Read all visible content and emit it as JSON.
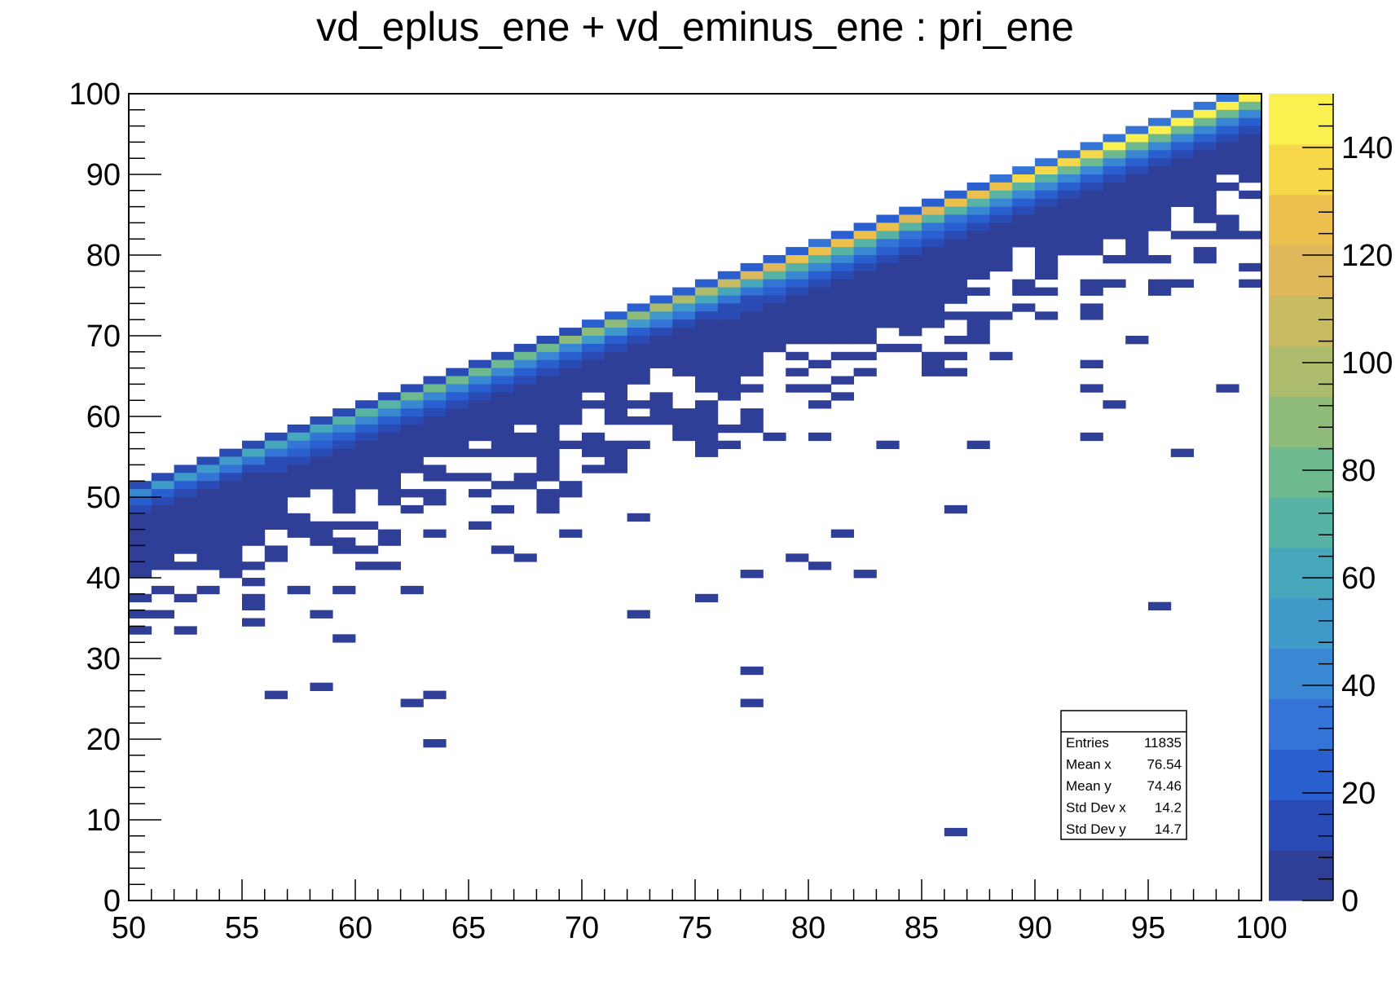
{
  "chart_data": {
    "type": "heatmap",
    "title": "vd_eplus_ene + vd_eminus_ene : pri_ene",
    "xlabel": "",
    "ylabel": "",
    "xlim": [
      50,
      100
    ],
    "ylim": [
      0,
      100
    ],
    "zlim": [
      0,
      150
    ],
    "x_ticks": [
      "50",
      "55",
      "60",
      "65",
      "70",
      "75",
      "80",
      "85",
      "90",
      "95",
      "100"
    ],
    "y_ticks": [
      "0",
      "10",
      "20",
      "30",
      "40",
      "50",
      "60",
      "70",
      "80",
      "90",
      "100"
    ],
    "z_ticks": [
      "0",
      "20",
      "40",
      "60",
      "80",
      "100",
      "120",
      "140"
    ],
    "bins": {
      "x": 50,
      "y": 100
    },
    "grid": false,
    "palette": [
      "#2f3f97",
      "#2b4bb4",
      "#2a5fd0",
      "#3374d6",
      "#3a88d3",
      "#3f9ac9",
      "#47a8bb",
      "#58b3a5",
      "#6fb990",
      "#8ebb7a",
      "#acbc6c",
      "#c8bb62",
      "#deb85a",
      "#ecc04e",
      "#f6d84a",
      "#faf050"
    ],
    "diagonal_band": [
      {
        "x": 50,
        "y": 51,
        "peak": 45
      },
      {
        "x": 55,
        "y": 56,
        "peak": 55
      },
      {
        "x": 60,
        "y": 61,
        "peak": 70
      },
      {
        "x": 65,
        "y": 66,
        "peak": 80
      },
      {
        "x": 70,
        "y": 71,
        "peak": 85
      },
      {
        "x": 75,
        "y": 76,
        "peak": 100
      },
      {
        "x": 80,
        "y": 81,
        "peak": 130
      },
      {
        "x": 85,
        "y": 86,
        "peak": 120
      },
      {
        "x": 90,
        "y": 91,
        "peak": 135
      },
      {
        "x": 95,
        "y": 96,
        "peak": 145
      },
      {
        "x": 99,
        "y": 99,
        "peak": 150
      }
    ],
    "outliers": [
      [
        86.5,
        8.5
      ],
      [
        63.5,
        19.5
      ],
      [
        62.5,
        24.5
      ],
      [
        63.5,
        25.5
      ],
      [
        56.5,
        25.5
      ],
      [
        58.5,
        26.5
      ],
      [
        77.5,
        24.5
      ],
      [
        77.5,
        28.5
      ],
      [
        59.5,
        32.5
      ],
      [
        52.5,
        33.5
      ],
      [
        55.5,
        34.5
      ],
      [
        50.5,
        35.5
      ],
      [
        51.5,
        35.5
      ],
      [
        58.5,
        35.5
      ],
      [
        72.5,
        35.5
      ],
      [
        95.5,
        36.5
      ],
      [
        55.5,
        36.5
      ],
      [
        50.5,
        37.5
      ],
      [
        75.5,
        37.5
      ],
      [
        53.5,
        38.5
      ],
      [
        57.5,
        38.5
      ],
      [
        59.5,
        38.5
      ],
      [
        62.5,
        38.5
      ],
      [
        55.5,
        39.5
      ],
      [
        50.5,
        40.5
      ],
      [
        54.5,
        40.5
      ],
      [
        77.5,
        40.5
      ],
      [
        82.5,
        40.5
      ],
      [
        51.5,
        41.5
      ],
      [
        52.5,
        41.5
      ],
      [
        53.5,
        41.5
      ],
      [
        60.5,
        41.5
      ],
      [
        80.5,
        41.5
      ],
      [
        53.5,
        42.5
      ],
      [
        54.5,
        42.5
      ],
      [
        56.5,
        42.5
      ],
      [
        67.5,
        42.5
      ],
      [
        79.5,
        42.5
      ],
      [
        66.5,
        43.5
      ],
      [
        59.5,
        44.5
      ],
      [
        61.5,
        45.5
      ],
      [
        63.5,
        45.5
      ],
      [
        69.5,
        45.5
      ],
      [
        81.5,
        45.5
      ],
      [
        56.5,
        46.5
      ],
      [
        57.5,
        46.5
      ],
      [
        65.5,
        46.5
      ],
      [
        72.5,
        47.5
      ],
      [
        86.5,
        48.5
      ],
      [
        68.5,
        50.5
      ],
      [
        69.5,
        50.5
      ],
      [
        67.5,
        52.5
      ],
      [
        65.5,
        52.5
      ],
      [
        70.5,
        53.5
      ],
      [
        68.5,
        54.5
      ],
      [
        96.5,
        55.5
      ],
      [
        70.5,
        55.5
      ],
      [
        83.5,
        56.5
      ],
      [
        87.5,
        56.5
      ],
      [
        72.5,
        56.5
      ],
      [
        78.5,
        57.5
      ],
      [
        80.5,
        57.5
      ],
      [
        92.5,
        57.5
      ],
      [
        75.5,
        58.5
      ],
      [
        74.5,
        59.5
      ],
      [
        72.5,
        59.5
      ],
      [
        77.5,
        60.5
      ],
      [
        75.5,
        60.5
      ],
      [
        93.5,
        61.5
      ],
      [
        73.5,
        61.5
      ],
      [
        72.5,
        61.5
      ],
      [
        76.5,
        62.5
      ],
      [
        79.5,
        63.5
      ],
      [
        92.5,
        63.5
      ],
      [
        98.5,
        63.5
      ],
      [
        79.5,
        65.5
      ],
      [
        82.5,
        65.5
      ],
      [
        86.5,
        65.5
      ],
      [
        92.5,
        66.5
      ],
      [
        84.5,
        68.5
      ],
      [
        86.5,
        67.5
      ],
      [
        88.5,
        67.5
      ],
      [
        83.5,
        68.5
      ],
      [
        94.5,
        69.5
      ],
      [
        80.5,
        71.5
      ],
      [
        82.5,
        70.5
      ],
      [
        85.5,
        72.5
      ],
      [
        87.5,
        72.5
      ],
      [
        90.5,
        72.5
      ],
      [
        89.5,
        73.5
      ],
      [
        92.5,
        75.5
      ],
      [
        93.5,
        76.5
      ],
      [
        95.5,
        76.5
      ],
      [
        96.5,
        76.5
      ],
      [
        99.5,
        76.5
      ],
      [
        99.5,
        78.5
      ],
      [
        90.5,
        78.5
      ],
      [
        97.5,
        79.5
      ],
      [
        94.5,
        80.5
      ],
      [
        91.5,
        80.5
      ],
      [
        93.5,
        82.5
      ],
      [
        96.5,
        82.5
      ],
      [
        98.5,
        82.5
      ],
      [
        99.5,
        82.5
      ]
    ],
    "stats_box": {
      "rows": [
        {
          "label": "Entries",
          "value": "11835"
        },
        {
          "label": "Mean x",
          "value": "76.54"
        },
        {
          "label": "Mean y",
          "value": "74.46"
        },
        {
          "label": "Std Dev x",
          "value": "14.2"
        },
        {
          "label": "Std Dev y",
          "value": "14.7"
        }
      ]
    }
  }
}
